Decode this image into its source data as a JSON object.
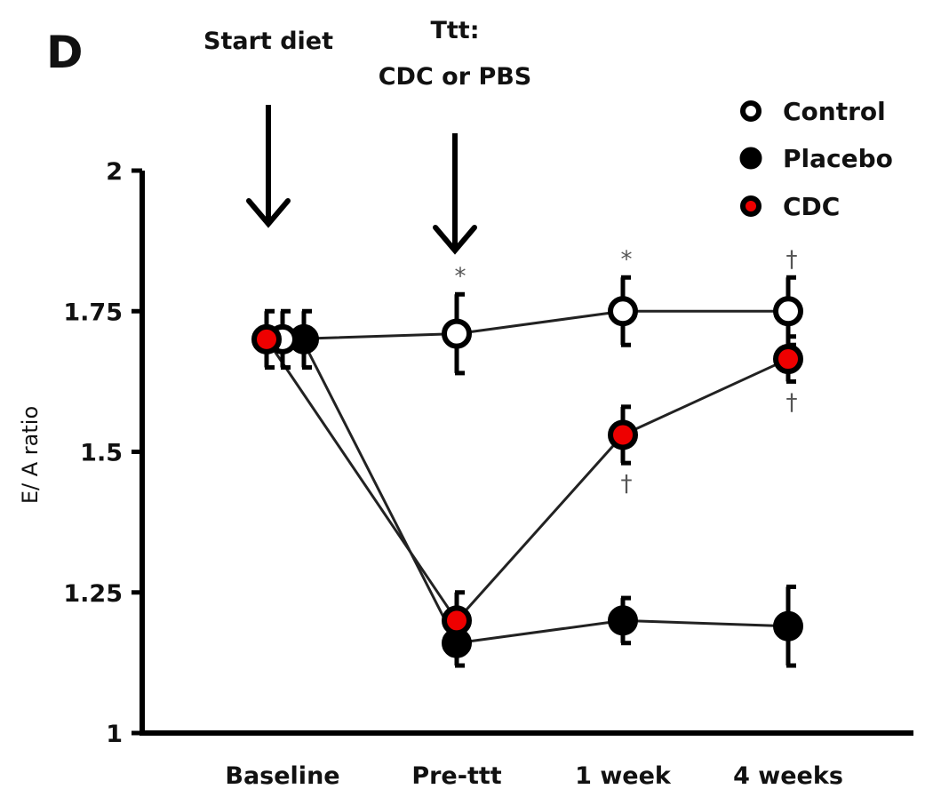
{
  "chart_data": {
    "type": "line",
    "panel_label": "D",
    "title": "",
    "xlabel": "",
    "ylabel": "E/ A ratio",
    "ylim": [
      1,
      2
    ],
    "yticks": [
      1,
      1.25,
      1.5,
      1.75,
      2
    ],
    "ytick_labels": [
      "1",
      "1.25",
      "1.5",
      "1.75",
      "2"
    ],
    "categories": [
      "Baseline",
      "Pre-ttt",
      "1 week",
      "4 weeks"
    ],
    "grid": false,
    "legend_position": "top-right",
    "series": [
      {
        "name": "Control",
        "marker": "open-circle",
        "fill": "#ffffff",
        "stroke": "#000000",
        "values": [
          1.7,
          1.71,
          1.75,
          1.75
        ],
        "errors": [
          0.05,
          0.07,
          0.06,
          0.06
        ],
        "significance": [
          "",
          "*",
          "*",
          "†"
        ]
      },
      {
        "name": "Placebo",
        "marker": "filled-circle",
        "fill": "#000000",
        "stroke": "#000000",
        "values": [
          1.7,
          1.16,
          1.2,
          1.19
        ],
        "errors": [
          0.05,
          0.04,
          0.04,
          0.07
        ],
        "significance": [
          "",
          "",
          "",
          ""
        ]
      },
      {
        "name": "CDC",
        "marker": "red-circle",
        "fill": "#ee0000",
        "stroke": "#000000",
        "values": [
          1.7,
          1.2,
          1.53,
          1.665
        ],
        "errors": [
          0.05,
          0.05,
          0.05,
          0.04
        ],
        "significance": [
          "",
          "",
          "†",
          "†"
        ]
      }
    ],
    "annotations": [
      {
        "text_lines": [
          "Start diet"
        ],
        "category": "Baseline",
        "type": "arrow-down"
      },
      {
        "text_lines": [
          "Ttt:",
          "CDC or PBS"
        ],
        "category": "Pre-ttt",
        "type": "arrow-down"
      }
    ]
  }
}
